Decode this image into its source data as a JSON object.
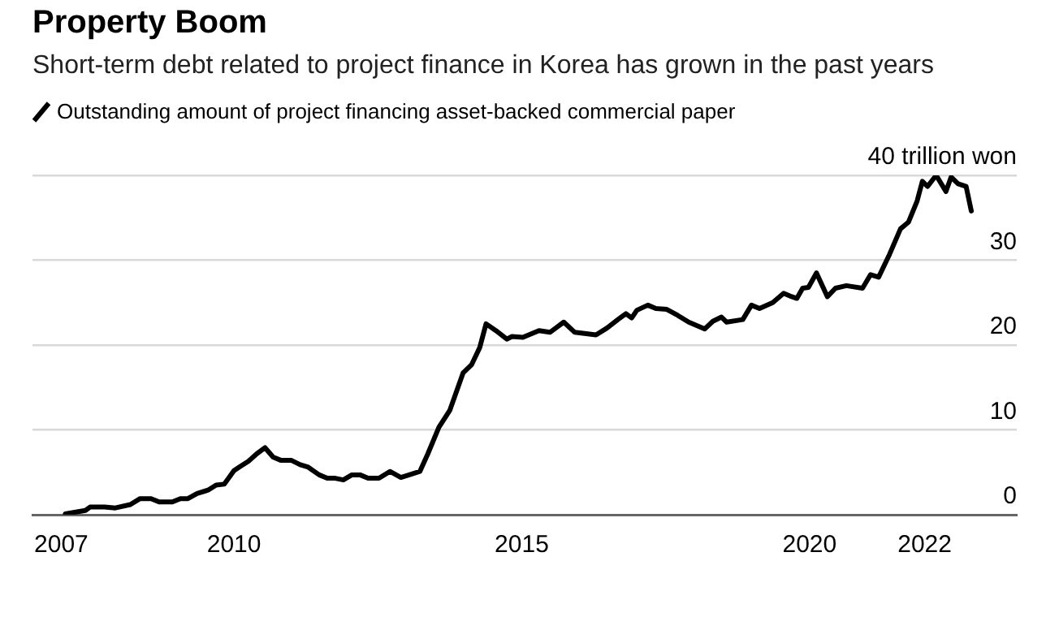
{
  "chart_data": {
    "type": "line",
    "title": "Property Boom",
    "subtitle": "Short-term debt related to project finance in Korea has grown in the past years",
    "x": [
      2007.07,
      2007.42,
      2007.5,
      2007.75,
      2007.94,
      2008.2,
      2008.37,
      2008.56,
      2008.7,
      2008.93,
      2009.07,
      2009.2,
      2009.36,
      2009.55,
      2009.69,
      2009.83,
      2010.0,
      2010.11,
      2010.25,
      2010.4,
      2010.54,
      2010.68,
      2010.82,
      2011.0,
      2011.15,
      2011.29,
      2011.48,
      2011.62,
      2011.76,
      2011.9,
      2012.05,
      2012.19,
      2012.33,
      2012.52,
      2012.71,
      2012.9,
      2013.09,
      2013.23,
      2013.37,
      2013.56,
      2013.75,
      2013.98,
      2014.13,
      2014.27,
      2014.38,
      2014.55,
      2014.74,
      2014.83,
      2015.02,
      2015.3,
      2015.49,
      2015.59,
      2015.73,
      2015.92,
      2016.29,
      2016.48,
      2016.67,
      2016.81,
      2016.91,
      2017.0,
      2017.19,
      2017.33,
      2017.52,
      2017.71,
      2017.9,
      2018.04,
      2018.18,
      2018.32,
      2018.47,
      2018.56,
      2018.84,
      2018.99,
      2019.13,
      2019.36,
      2019.55,
      2019.69,
      2019.78,
      2019.88,
      2019.98,
      2020.12,
      2020.31,
      2020.45,
      2020.64,
      2020.92,
      2021.06,
      2021.2,
      2021.39,
      2021.58,
      2021.72,
      2021.87,
      2021.96,
      2022.05,
      2022.2,
      2022.37,
      2022.46,
      2022.58,
      2022.72,
      2022.81
    ],
    "series": [
      {
        "name": "Outstanding amount of project financing asset-backed commercial paper",
        "color": "#000000",
        "values": [
          0.1,
          0.5,
          0.9,
          0.9,
          0.8,
          1.2,
          1.9,
          1.9,
          1.5,
          1.5,
          1.9,
          1.9,
          2.5,
          2.9,
          3.5,
          3.6,
          5.2,
          5.7,
          6.3,
          7.2,
          7.9,
          6.8,
          6.4,
          6.4,
          5.9,
          5.6,
          4.7,
          4.3,
          4.3,
          4.1,
          4.7,
          4.7,
          4.3,
          4.3,
          5.1,
          4.4,
          4.8,
          5.1,
          7.2,
          10.3,
          12.3,
          16.7,
          17.7,
          19.7,
          22.5,
          21.7,
          20.7,
          21.0,
          20.9,
          21.7,
          21.5,
          22.0,
          22.7,
          21.5,
          21.2,
          22.0,
          23.0,
          23.7,
          23.2,
          24.1,
          24.7,
          24.3,
          24.2,
          23.5,
          22.7,
          22.3,
          21.9,
          22.8,
          23.3,
          22.7,
          23.0,
          24.7,
          24.3,
          25.0,
          26.1,
          25.7,
          25.5,
          26.7,
          26.8,
          28.5,
          25.7,
          26.7,
          27.0,
          26.7,
          28.3,
          28.0,
          30.7,
          33.7,
          34.5,
          37.0,
          39.3,
          38.7,
          40.0,
          38.1,
          39.8,
          39.0,
          38.7,
          35.8
        ]
      }
    ],
    "xlim": [
      2006.5,
      2023.6
    ],
    "xticks": [
      2007,
      2010,
      2015,
      2020,
      2022
    ],
    "ylim": [
      0,
      40
    ],
    "yticks": [
      0,
      10,
      20,
      30,
      {
        "value": 40,
        "label": "40 trillion won"
      }
    ],
    "grid": "y",
    "legend": "top left",
    "marker": "none",
    "line_style": "solid"
  }
}
